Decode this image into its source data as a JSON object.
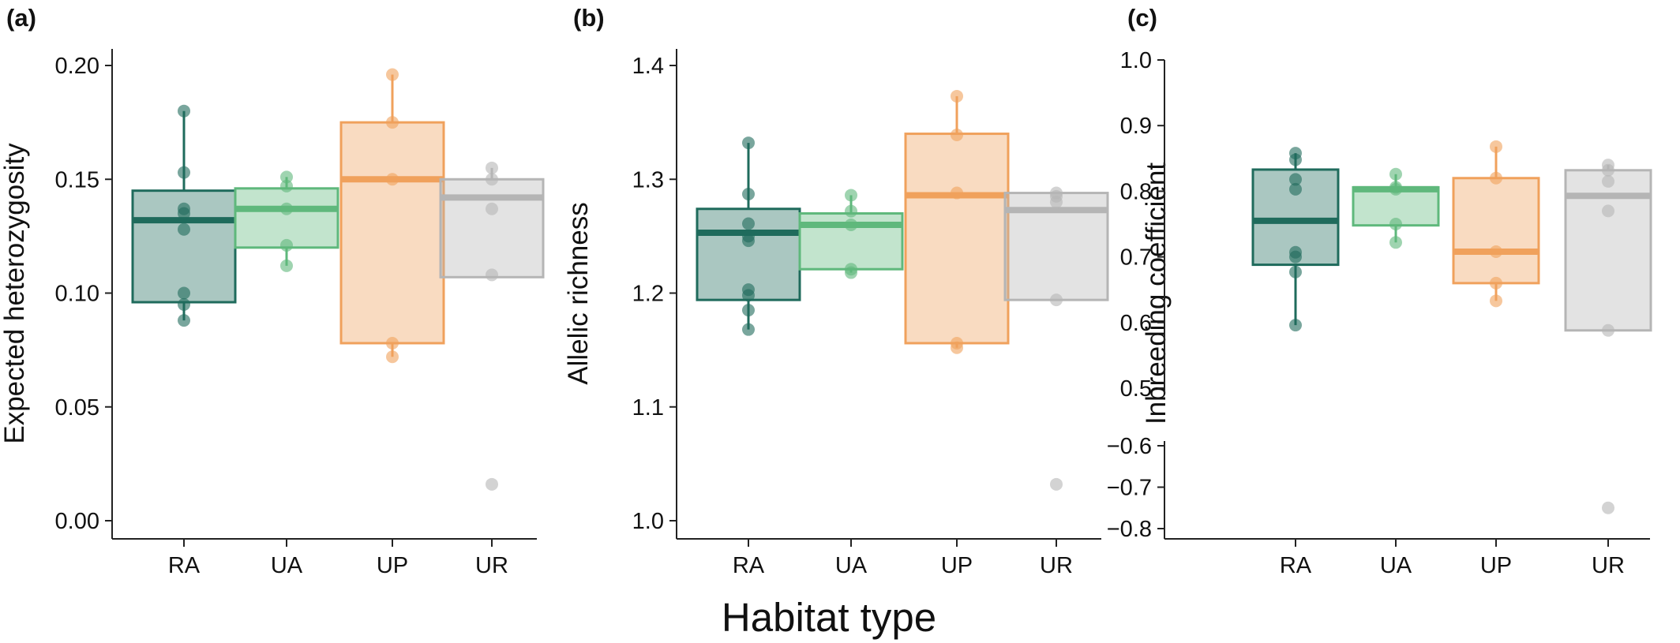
{
  "figure": {
    "xlabel": "Habitat type"
  },
  "colors": {
    "RA": "#1f6b5c",
    "UA": "#5fb87c",
    "UP": "#f0a15c",
    "UR": "#b5b5b5",
    "axis": "#222222"
  },
  "chart_data": [
    {
      "panel_label": "(a)",
      "type": "box",
      "ylabel": "Expected heterozygosity",
      "categories": [
        "RA",
        "UA",
        "UP",
        "UR"
      ],
      "ylim": [
        0.0,
        0.205
      ],
      "yticks": [
        "0.00",
        "0.05",
        "0.10",
        "0.15",
        "0.20"
      ],
      "ytick_values": [
        0.0,
        0.05,
        0.1,
        0.15,
        0.2
      ],
      "boxes": [
        {
          "category": "RA",
          "q1": 0.096,
          "median": 0.132,
          "q3": 0.145,
          "whisker_low": 0.088,
          "whisker_high": 0.18,
          "points": [
            0.18,
            0.153,
            0.137,
            0.135,
            0.128,
            0.1,
            0.095,
            0.088
          ]
        },
        {
          "category": "UA",
          "q1": 0.12,
          "median": 0.137,
          "q3": 0.146,
          "whisker_low": 0.112,
          "whisker_high": 0.151,
          "points": [
            0.151,
            0.147,
            0.137,
            0.121,
            0.112
          ]
        },
        {
          "category": "UP",
          "q1": 0.078,
          "median": 0.15,
          "q3": 0.175,
          "whisker_low": 0.072,
          "whisker_high": 0.196,
          "points": [
            0.196,
            0.175,
            0.15,
            0.078,
            0.072
          ]
        },
        {
          "category": "UR",
          "q1": 0.107,
          "median": 0.142,
          "q3": 0.15,
          "whisker_low": 0.107,
          "whisker_high": 0.155,
          "points": [
            0.155,
            0.15,
            0.137,
            0.108,
            0.016
          ]
        }
      ]
    },
    {
      "panel_label": "(b)",
      "type": "box",
      "ylabel": "Allelic richness",
      "categories": [
        "RA",
        "UA",
        "UP",
        "UR"
      ],
      "ylim": [
        0.995,
        1.405
      ],
      "yticks": [
        "1.0",
        "1.1",
        "1.2",
        "1.3",
        "1.4"
      ],
      "ytick_values": [
        1.0,
        1.1,
        1.2,
        1.3,
        1.4
      ],
      "boxes": [
        {
          "category": "RA",
          "q1": 1.194,
          "median": 1.253,
          "q3": 1.274,
          "whisker_low": 1.168,
          "whisker_high": 1.332,
          "points": [
            1.332,
            1.287,
            1.261,
            1.25,
            1.246,
            1.203,
            1.198,
            1.185,
            1.168
          ]
        },
        {
          "category": "UA",
          "q1": 1.221,
          "median": 1.26,
          "q3": 1.27,
          "whisker_low": 1.218,
          "whisker_high": 1.286,
          "points": [
            1.286,
            1.272,
            1.26,
            1.221,
            1.218
          ]
        },
        {
          "category": "UP",
          "q1": 1.156,
          "median": 1.286,
          "q3": 1.34,
          "whisker_low": 1.152,
          "whisker_high": 1.373,
          "points": [
            1.373,
            1.339,
            1.288,
            1.156,
            1.152
          ]
        },
        {
          "category": "UR",
          "q1": 1.194,
          "median": 1.273,
          "q3": 1.288,
          "whisker_low": 1.194,
          "whisker_high": 1.288,
          "points": [
            1.288,
            1.285,
            1.28,
            1.194,
            1.032
          ]
        }
      ]
    },
    {
      "panel_label": "(c)",
      "type": "box",
      "ylabel": "Inbreeding coefficient",
      "categories": [
        "RA",
        "UA",
        "UP",
        "UR"
      ],
      "broken_axis": true,
      "upper_ylim": [
        0.5,
        1.0
      ],
      "lower_ylim": [
        -0.8,
        -0.6
      ],
      "yticks": [
        "1.0",
        "0.9",
        "0.8",
        "0.7",
        "0.6",
        "0.5",
        "−0.6",
        "−0.7",
        "−0.8"
      ],
      "ytick_values": [
        1.0,
        0.9,
        0.8,
        0.7,
        0.6,
        0.5,
        -0.6,
        -0.7,
        -0.8
      ],
      "boxes": [
        {
          "category": "RA",
          "q1": 0.688,
          "median": 0.755,
          "q3": 0.833,
          "whisker_low": 0.596,
          "whisker_high": 0.858,
          "points": [
            0.858,
            0.848,
            0.818,
            0.803,
            0.707,
            0.7,
            0.677,
            0.596
          ]
        },
        {
          "category": "UA",
          "q1": 0.748,
          "median": 0.803,
          "q3": 0.806,
          "whisker_low": 0.722,
          "whisker_high": 0.826,
          "points": [
            0.826,
            0.806,
            0.803,
            0.75,
            0.722
          ]
        },
        {
          "category": "UP",
          "q1": 0.66,
          "median": 0.708,
          "q3": 0.82,
          "whisker_low": 0.633,
          "whisker_high": 0.868,
          "points": [
            0.868,
            0.82,
            0.708,
            0.66,
            0.633
          ]
        },
        {
          "category": "UR",
          "q1": 0.588,
          "median": 0.793,
          "q3": 0.832,
          "whisker_low": 0.588,
          "whisker_high": 0.84,
          "points": [
            0.84,
            0.832,
            0.815,
            0.77,
            0.588,
            -0.75
          ]
        }
      ]
    }
  ]
}
